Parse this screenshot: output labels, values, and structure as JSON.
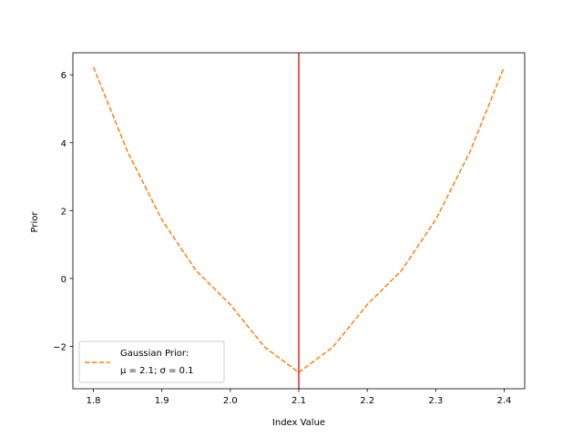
{
  "chart_data": {
    "type": "line",
    "title": "",
    "xlabel": "Index Value",
    "ylabel": "Prior",
    "xlim": [
      1.77,
      2.43
    ],
    "ylim": [
      -3.25,
      6.65
    ],
    "xticks": [
      1.8,
      1.9,
      2.0,
      2.1,
      2.2,
      2.3,
      2.4
    ],
    "xtick_labels": [
      "1.8",
      "1.9",
      "2.0",
      "2.1",
      "2.2",
      "2.3",
      "2.4"
    ],
    "yticks": [
      -2,
      0,
      2,
      4,
      6
    ],
    "ytick_labels": [
      "−2",
      "0",
      "2",
      "4",
      "6"
    ],
    "grid": false,
    "legend_position": "lower-left",
    "series": [
      {
        "name": "Gaussian Prior: μ = 2.1; σ = 0.1",
        "name_lines": [
          "Gaussian Prior:",
          "μ = 2.1; σ = 0.1"
        ],
        "color": "#ff7f0e",
        "style": "dashed",
        "x": [
          1.8,
          1.85,
          1.9,
          1.95,
          2.0,
          2.05,
          2.1,
          2.15,
          2.2,
          2.25,
          2.3,
          2.35,
          2.4
        ],
        "y": [
          6.23,
          3.73,
          1.73,
          0.23,
          -0.77,
          -2.02,
          -2.77,
          -2.02,
          -0.77,
          0.23,
          1.73,
          3.73,
          6.23
        ]
      }
    ],
    "vlines": [
      {
        "x": 2.1,
        "color": "#d62728"
      }
    ]
  }
}
